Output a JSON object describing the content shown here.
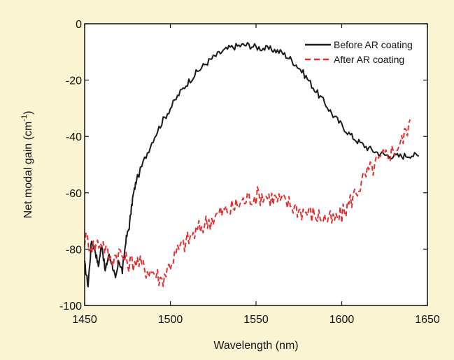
{
  "chart_data": {
    "type": "line",
    "xlabel": "Wavelength (nm)",
    "ylabel": {
      "prefix": "Net modal gain (cm",
      "superscript": "-1",
      "suffix": ")"
    },
    "xlim": [
      1450,
      1650
    ],
    "ylim": [
      -100,
      0
    ],
    "xticks": [
      1450,
      1500,
      1550,
      1600,
      1650
    ],
    "yticks": [
      0,
      -20,
      -40,
      -60,
      -80,
      -100
    ],
    "grid": false,
    "legend_position": "top-right",
    "series": [
      {
        "name": "Before AR coating",
        "color": "#1a1a1a",
        "style": "solid",
        "noise": 1.2,
        "x": [
          1450,
          1452,
          1454,
          1456,
          1458,
          1460,
          1462,
          1464,
          1466,
          1468,
          1470,
          1472,
          1474,
          1476,
          1478,
          1480,
          1485,
          1490,
          1495,
          1500,
          1505,
          1510,
          1515,
          1520,
          1525,
          1530,
          1535,
          1540,
          1545,
          1550,
          1555,
          1560,
          1565,
          1570,
          1575,
          1580,
          1585,
          1590,
          1595,
          1600,
          1605,
          1610,
          1615,
          1620,
          1625,
          1630,
          1635,
          1640,
          1645
        ],
        "y": [
          -85,
          -93,
          -77,
          -80,
          -86,
          -78,
          -88,
          -82,
          -85,
          -91,
          -84,
          -88,
          -77,
          -72,
          -62,
          -56,
          -48,
          -41,
          -35,
          -30,
          -25,
          -21,
          -17.5,
          -14.5,
          -12,
          -10,
          -8.5,
          -7.8,
          -7.5,
          -8.3,
          -8.8,
          -9.2,
          -10.2,
          -12.5,
          -15.5,
          -19.5,
          -24,
          -28,
          -32.5,
          -36,
          -39.5,
          -42,
          -44,
          -45.5,
          -46.5,
          -47,
          -47,
          -46.5,
          -47
        ]
      },
      {
        "name": "After AR coating",
        "color": "#e03030",
        "style": "dashed",
        "noise": 3.5,
        "x": [
          1450,
          1455,
          1460,
          1465,
          1470,
          1475,
          1480,
          1485,
          1490,
          1495,
          1500,
          1505,
          1510,
          1515,
          1520,
          1525,
          1530,
          1535,
          1540,
          1545,
          1550,
          1555,
          1560,
          1565,
          1570,
          1575,
          1580,
          1585,
          1590,
          1595,
          1600,
          1605,
          1610,
          1615,
          1620,
          1625,
          1630,
          1635,
          1640
        ],
        "y": [
          -76,
          -79,
          -77,
          -84,
          -81,
          -85,
          -84,
          -87,
          -88,
          -91,
          -85,
          -80,
          -77,
          -74,
          -71,
          -69,
          -67,
          -66,
          -64,
          -62,
          -61,
          -61,
          -62,
          -63,
          -64,
          -66,
          -67,
          -68,
          -69,
          -70,
          -68,
          -63,
          -58,
          -53,
          -50,
          -47,
          -45,
          -42,
          -34
        ]
      }
    ]
  }
}
